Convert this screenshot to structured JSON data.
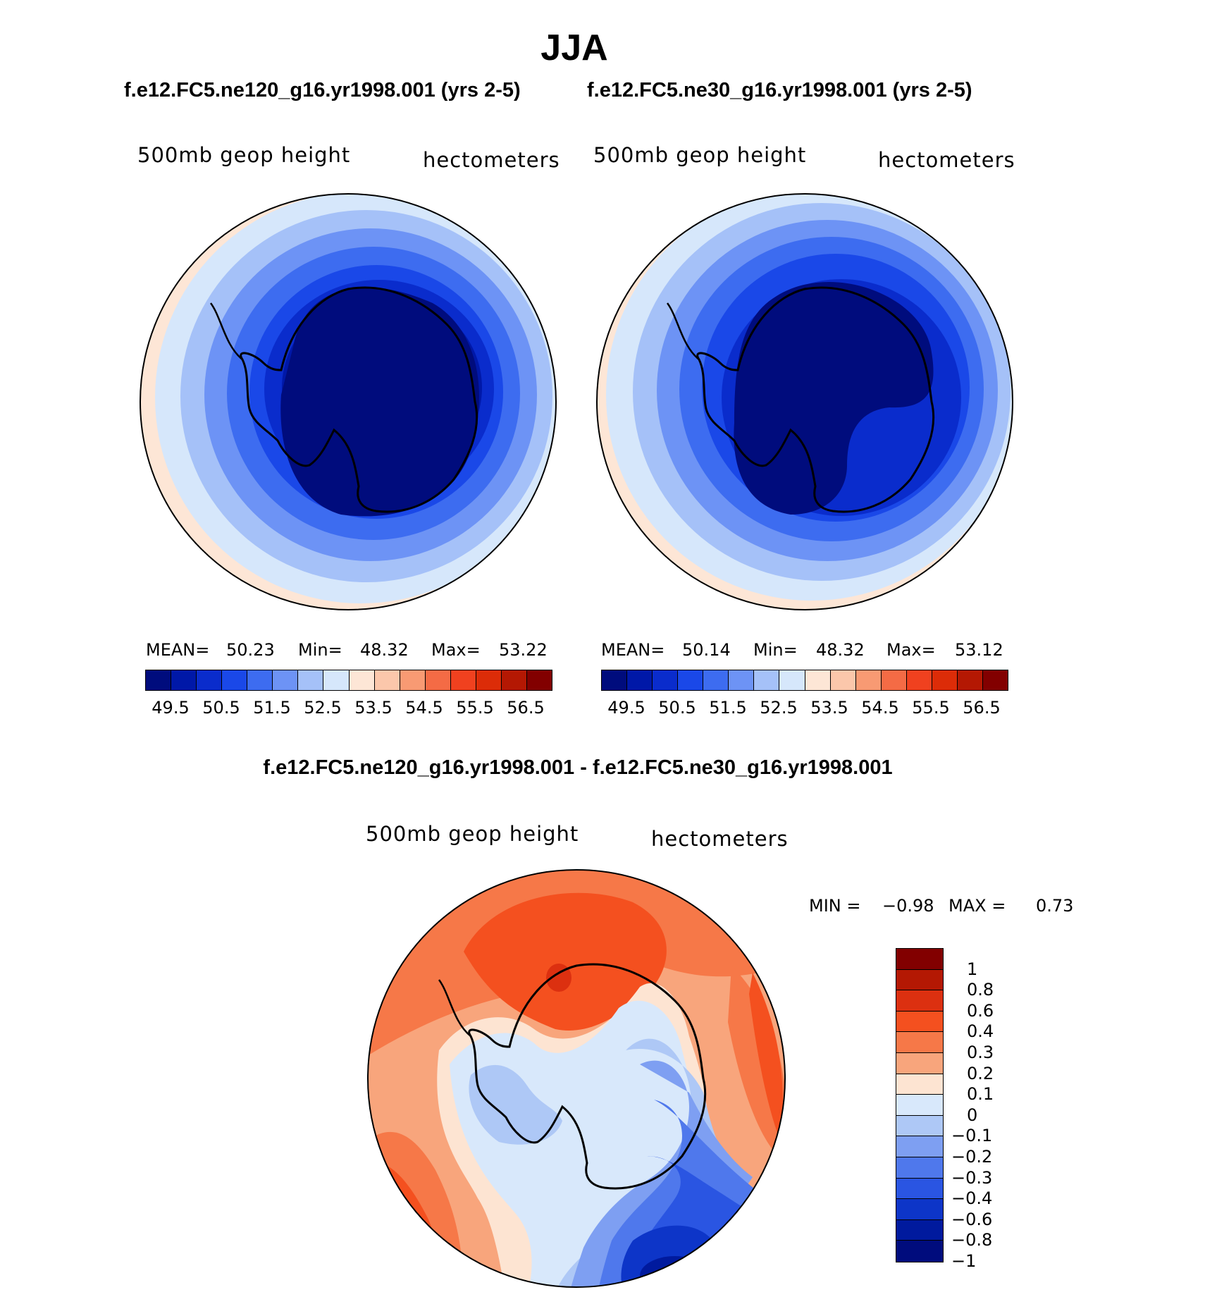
{
  "title": "JJA",
  "panels": [
    {
      "run_label": "f.e12.FC5.ne120_g16.yr1998.001 (yrs 2-5)",
      "field": "500mb geop height",
      "units": "hectometers",
      "stats": {
        "mean_label": "MEAN=",
        "mean": "50.23",
        "min_label": "Min=",
        "min": "48.32",
        "max_label": "Max=",
        "max": "53.22"
      }
    },
    {
      "run_label": "f.e12.FC5.ne30_g16.yr1998.001 (yrs 2-5)",
      "field": "500mb geop height",
      "units": "hectometers",
      "stats": {
        "mean_label": "MEAN=",
        "mean": "50.14",
        "min_label": "Min=",
        "min": "48.32",
        "max_label": "Max=",
        "max": "53.12"
      }
    }
  ],
  "colorbar_top": {
    "colors": [
      "#000c7d",
      "#0018a8",
      "#0a2ccc",
      "#1a48e8",
      "#3d6cf0",
      "#6d93f5",
      "#a5c1f8",
      "#d6e7fb",
      "#fde6d6",
      "#fbc7ab",
      "#f89a73",
      "#f46b45",
      "#f0411f",
      "#dc2c08",
      "#b41803",
      "#820000"
    ],
    "labels": [
      "49.5",
      "50.5",
      "51.5",
      "52.5",
      "53.5",
      "54.5",
      "55.5",
      "56.5"
    ]
  },
  "diff_panel": {
    "run_label": "f.e12.FC5.ne120_g16.yr1998.001 - f.e12.FC5.ne30_g16.yr1998.001",
    "field": "500mb geop height",
    "units": "hectometers",
    "min_label": "MIN =",
    "min": "−0.98",
    "max_label": "MAX =",
    "max": "0.73"
  },
  "colorbar_diff": {
    "colors": [
      "#820000",
      "#b41803",
      "#dc3010",
      "#f4501f",
      "#f67848",
      "#f8a57c",
      "#fde4d2",
      "#d8e8fb",
      "#aec8f6",
      "#7e9ff2",
      "#4f78ec",
      "#2a55e2",
      "#0d35c8",
      "#001a9e",
      "#000c7d"
    ],
    "labels": [
      "1",
      "0.8",
      "0.6",
      "0.4",
      "0.3",
      "0.2",
      "0.1",
      "0",
      "−0.1",
      "−0.2",
      "−0.3",
      "−0.4",
      "−0.6",
      "−0.8",
      "−1"
    ]
  }
}
